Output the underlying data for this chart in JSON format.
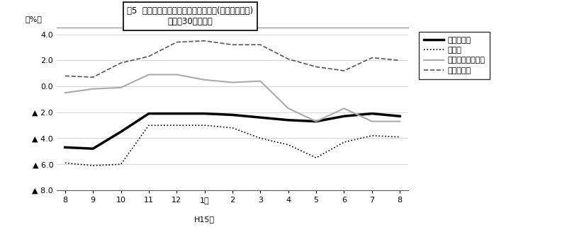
{
  "title_box_line1": "図5  主要業種別･常用労働者数の推移(対前年同月比)",
  "title_box_line2": "－規模30人以上－",
  "ylabel": "（%）",
  "xlabel_label": "H15年",
  "xlabel_pos_x": 5,
  "ylim": [
    -8.0,
    4.5
  ],
  "yticks": [
    4.0,
    2.0,
    0.0,
    -2.0,
    -4.0,
    -6.0,
    -8.0
  ],
  "ytick_labels": [
    "4.0",
    "2.0",
    "0.0",
    "▲ 2.0",
    "▲ 4.0",
    "▲ 6.0",
    "▲ 8.0"
  ],
  "x_labels": [
    "8",
    "9",
    "10",
    "11",
    "12",
    "1月",
    "2",
    "3",
    "4",
    "5",
    "6",
    "7",
    "8"
  ],
  "x_positions": [
    0,
    1,
    2,
    3,
    4,
    5,
    6,
    7,
    8,
    9,
    10,
    11,
    12
  ],
  "series_order": [
    "調査産業計",
    "製造業",
    "卸・小売・飲食店",
    "サービス業"
  ],
  "series": {
    "調査産業計": {
      "color": "#000000",
      "linewidth": 2.5,
      "linestyle": "solid",
      "values": [
        -4.7,
        -4.8,
        -3.5,
        -2.1,
        -2.1,
        -2.1,
        -2.2,
        -2.4,
        -2.6,
        -2.7,
        -2.3,
        -2.1,
        -2.3
      ]
    },
    "製造業": {
      "color": "#000000",
      "linewidth": 1.2,
      "linestyle": "dotted",
      "values": [
        -5.9,
        -6.1,
        -6.0,
        -3.0,
        -3.0,
        -3.0,
        -3.2,
        -4.0,
        -4.5,
        -5.5,
        -4.3,
        -3.8,
        -3.9
      ]
    },
    "卸・小売・飲食店": {
      "color": "#aaaaaa",
      "linewidth": 1.5,
      "linestyle": "solid",
      "values": [
        -0.5,
        -0.2,
        -0.1,
        0.9,
        0.9,
        0.5,
        0.3,
        0.4,
        -1.7,
        -2.7,
        -1.7,
        -2.7,
        -2.7
      ]
    },
    "サービス業": {
      "color": "#555555",
      "linewidth": 1.2,
      "linestyle": "dashed",
      "values": [
        0.8,
        0.7,
        1.8,
        2.3,
        3.4,
        3.5,
        3.2,
        3.2,
        2.1,
        1.5,
        1.2,
        2.2,
        2.0
      ]
    }
  },
  "legend_entries": [
    "調査産業計",
    "製造業",
    "卸・小売・飲食店",
    "サービス業"
  ],
  "background_color": "#ffffff",
  "grid_color": "#cccccc",
  "fontsize_tick": 8,
  "fontsize_legend": 8,
  "fontsize_title": 8.5,
  "fontsize_ylabel": 8
}
